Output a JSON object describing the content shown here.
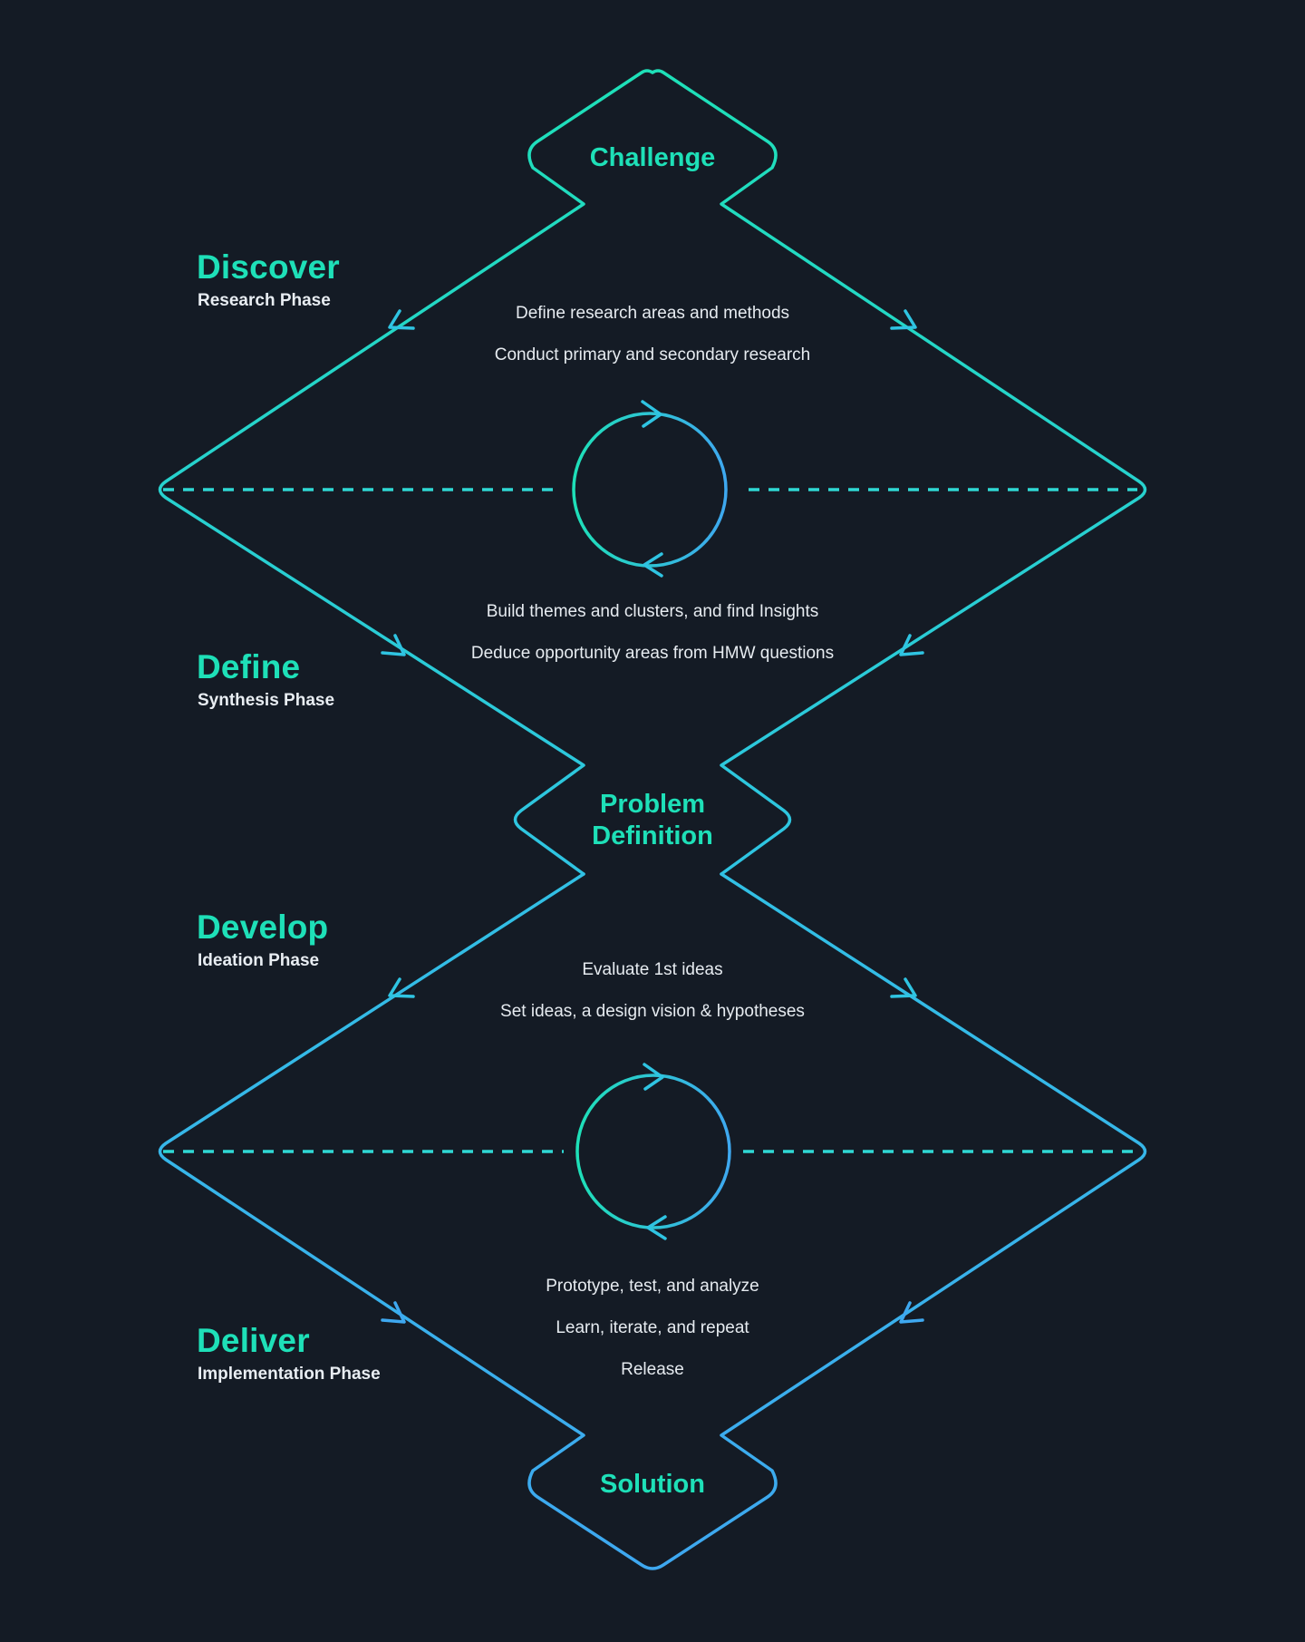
{
  "nodes": {
    "challenge": "Challenge",
    "problem_line1": "Problem",
    "problem_line2": "Definition",
    "solution": "Solution"
  },
  "phases": [
    {
      "name": "Discover",
      "subtitle": "Research Phase"
    },
    {
      "name": "Define",
      "subtitle": "Synthesis Phase"
    },
    {
      "name": "Develop",
      "subtitle": "Ideation Phase"
    },
    {
      "name": "Deliver",
      "subtitle": "Implementation Phase"
    }
  ],
  "steps": {
    "discover": [
      "Define research areas and methods",
      "Conduct primary and secondary research"
    ],
    "define": [
      "Build themes and clusters, and find Insights",
      "Deduce opportunity areas from HMW questions"
    ],
    "develop": [
      "Evaluate 1st ideas",
      "Set ideas, a design vision & hypotheses"
    ],
    "deliver": [
      "Prototype, test, and analyze",
      "Learn, iterate, and repeat",
      "Release"
    ]
  },
  "colors": {
    "background": "#141b25",
    "teal": "#1ee0b8",
    "blue": "#3ea8f0",
    "text": "#e6ebf0"
  }
}
